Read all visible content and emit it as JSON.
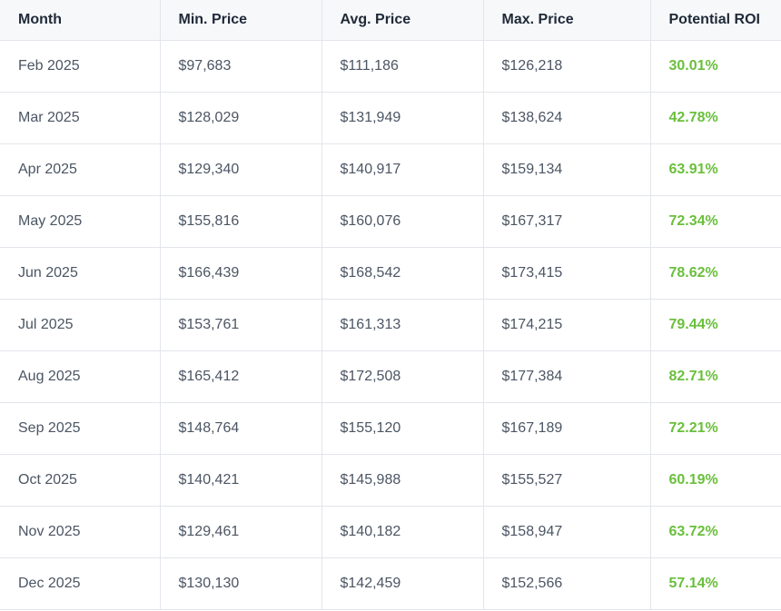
{
  "chart_data": {
    "type": "table",
    "columns": [
      "Month",
      "Min. Price",
      "Avg. Price",
      "Max. Price",
      "Potential ROI"
    ],
    "rows": [
      [
        "Feb 2025",
        "$97,683",
        "$111,186",
        "$126,218",
        "30.01%"
      ],
      [
        "Mar 2025",
        "$128,029",
        "$131,949",
        "$138,624",
        "42.78%"
      ],
      [
        "Apr 2025",
        "$129,340",
        "$140,917",
        "$159,134",
        "63.91%"
      ],
      [
        "May 2025",
        "$155,816",
        "$160,076",
        "$167,317",
        "72.34%"
      ],
      [
        "Jun 2025",
        "$166,439",
        "$168,542",
        "$173,415",
        "78.62%"
      ],
      [
        "Jul 2025",
        "$153,761",
        "$161,313",
        "$174,215",
        "79.44%"
      ],
      [
        "Aug 2025",
        "$165,412",
        "$172,508",
        "$177,384",
        "82.71%"
      ],
      [
        "Sep 2025",
        "$148,764",
        "$155,120",
        "$167,189",
        "72.21%"
      ],
      [
        "Oct 2025",
        "$140,421",
        "$145,988",
        "$155,527",
        "60.19%"
      ],
      [
        "Nov 2025",
        "$129,461",
        "$140,182",
        "$158,947",
        "63.72%"
      ],
      [
        "Dec 2025",
        "$130,130",
        "$142,459",
        "$152,566",
        "57.14%"
      ]
    ],
    "colors": {
      "roi_text": "#6abf3c",
      "header_bg": "#f7f8fa",
      "border": "#e2e5ea"
    }
  }
}
